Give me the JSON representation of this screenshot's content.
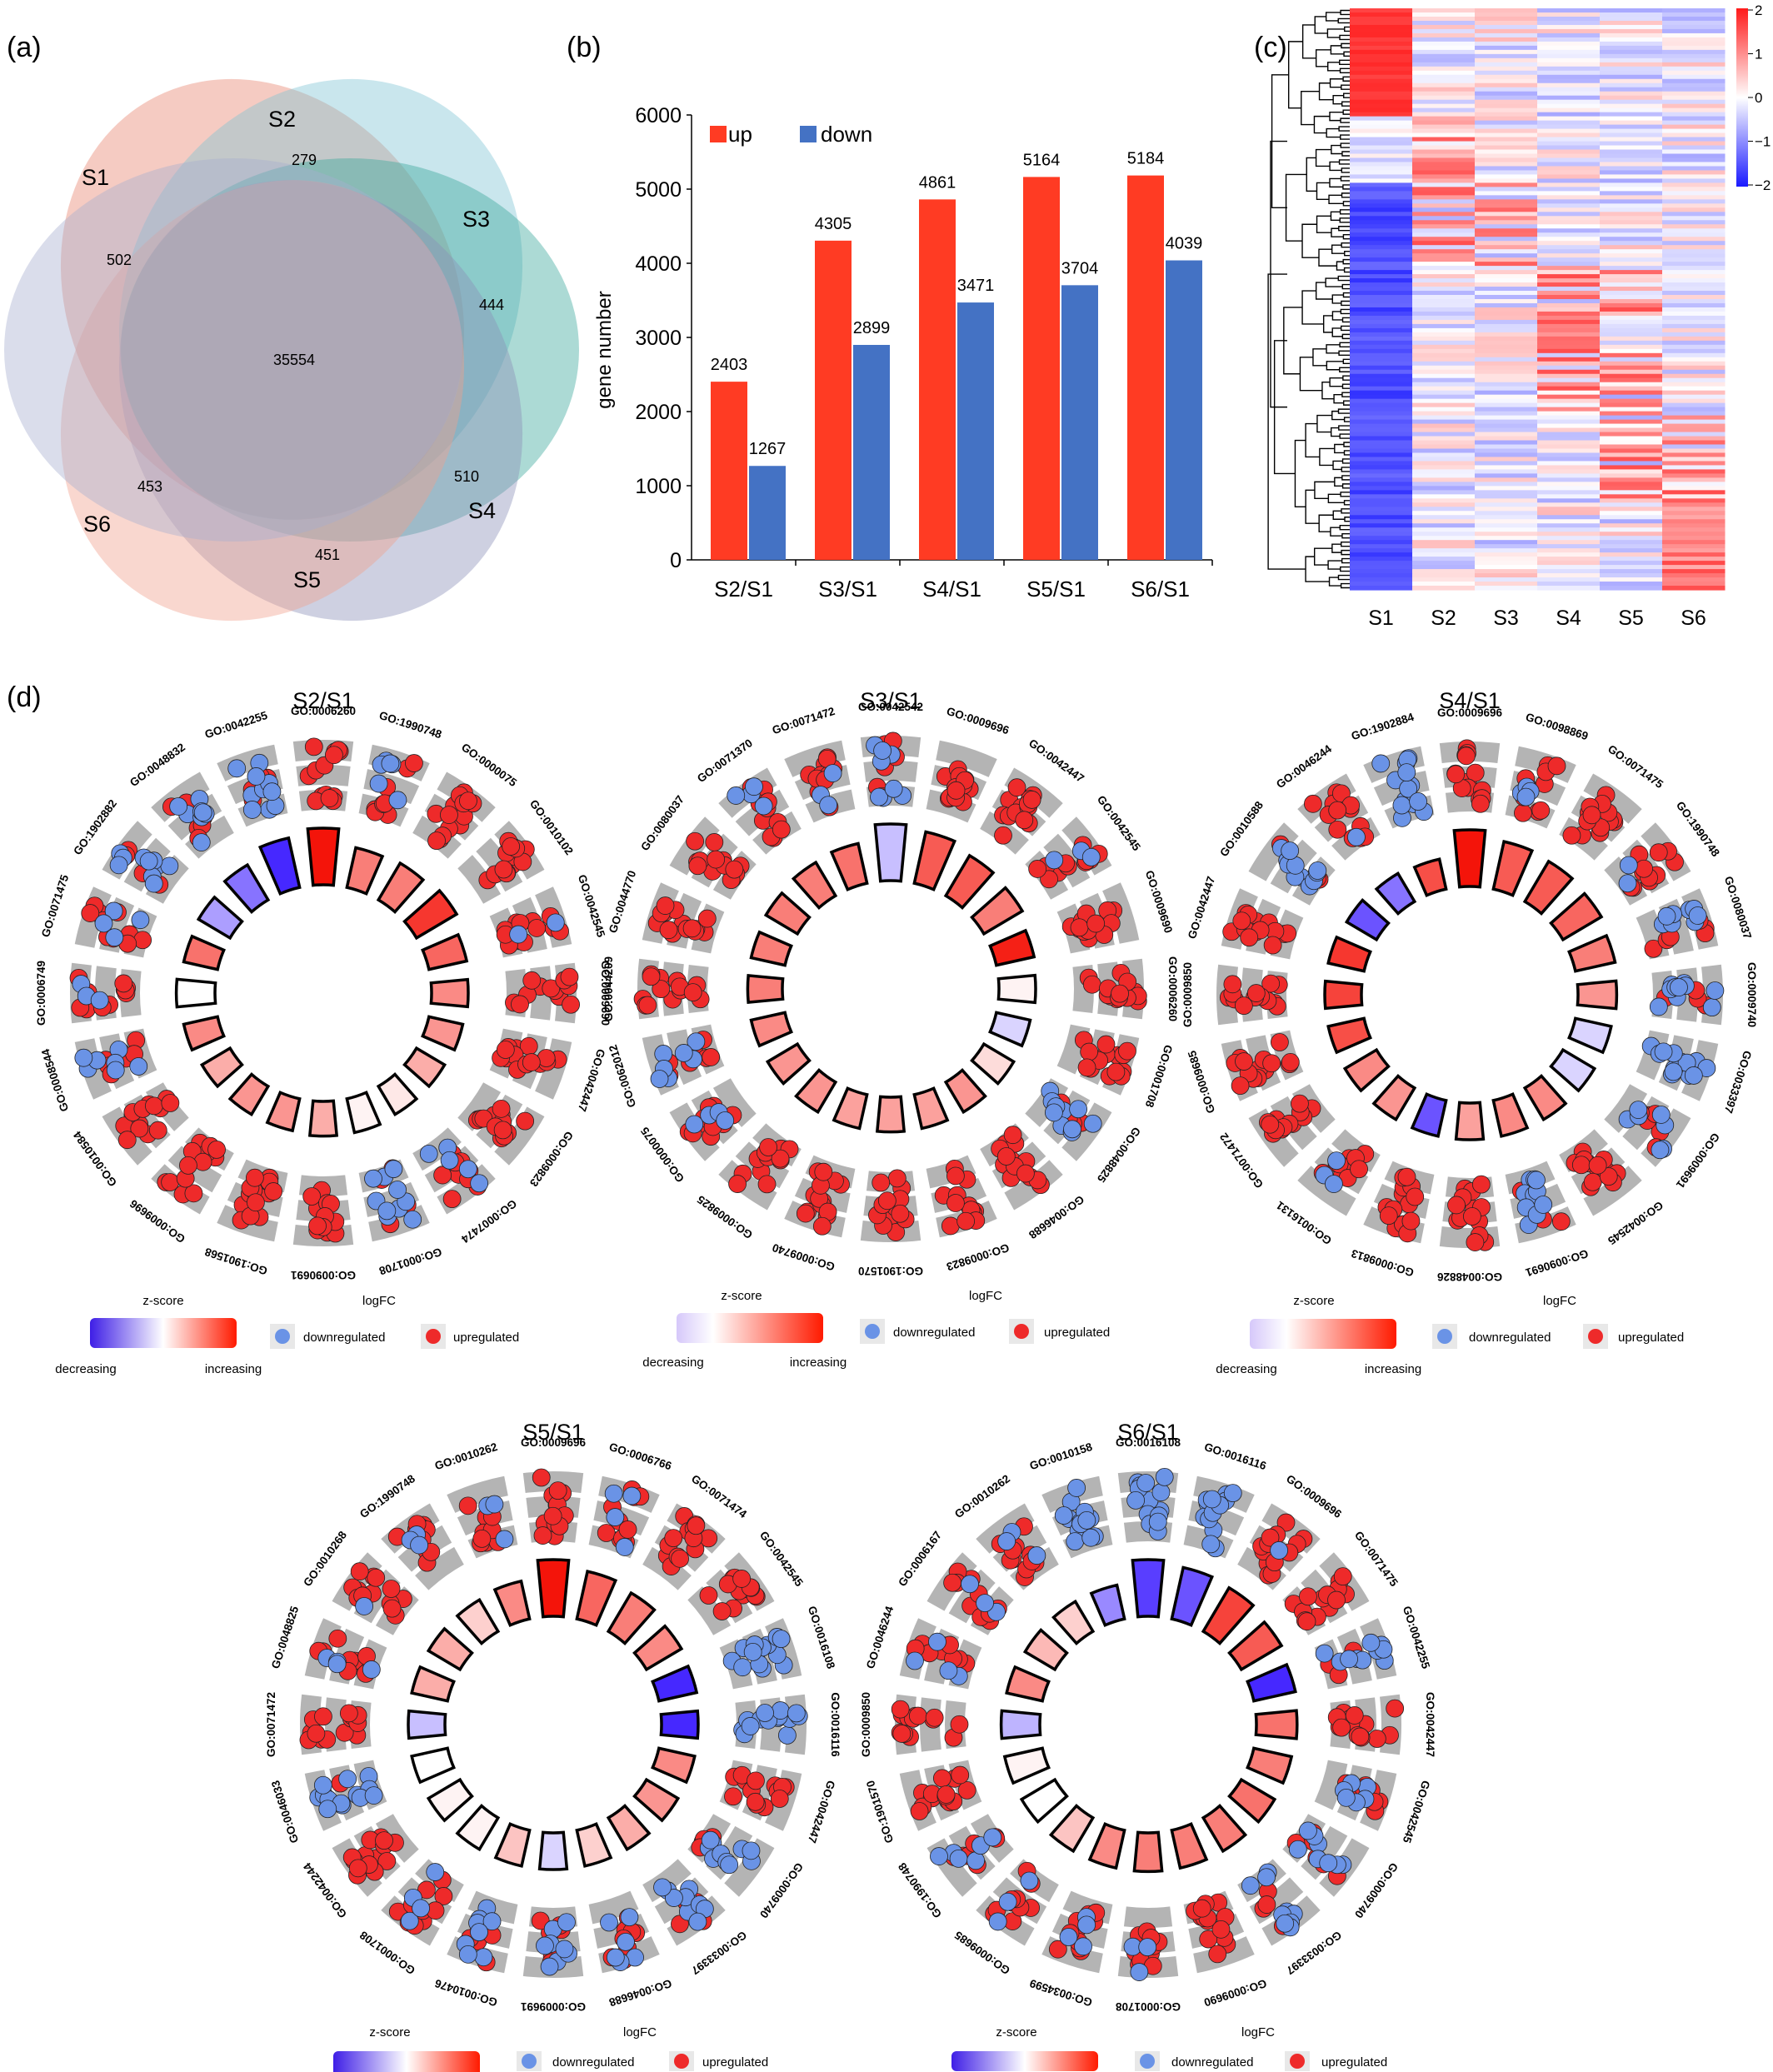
{
  "panel_labels": {
    "a": "(a)",
    "b": "(b)",
    "c": "(c)",
    "d": "(d)"
  },
  "colors": {
    "up": "#ff3b23",
    "down": "#4472c4",
    "zmin": "#3e1ee6",
    "zmid": "#ffffff",
    "zmax": "#ff1a00",
    "dot_up": "#ee2a2a",
    "dot_down": "#6a93e6",
    "track": "#b4b4b4"
  },
  "chart_data": [
    {
      "type": "venn",
      "sets": [
        "S1",
        "S2",
        "S3",
        "S4",
        "S5",
        "S6"
      ],
      "unique_counts": {
        "S1": 502,
        "S2": 279,
        "S3": 444,
        "S4": 510,
        "S5": 451,
        "S6": 453
      },
      "shared_all": 35554,
      "set_colors": {
        "S1": "#e8836e",
        "S2": "#7fc4d3",
        "S3": "#3aa89a",
        "S4": "#8b8fb8",
        "S5": "#f0a08c",
        "S6": "#a7aecf"
      }
    },
    {
      "type": "bar",
      "categories": [
        "S2/S1",
        "S3/S1",
        "S4/S1",
        "S5/S1",
        "S6/S1"
      ],
      "series": [
        {
          "name": "up",
          "values": [
            2403,
            4305,
            4861,
            5164,
            5184
          ],
          "color": "#ff3b23"
        },
        {
          "name": "down",
          "values": [
            1267,
            2899,
            3471,
            3704,
            4039
          ],
          "color": "#4472c4"
        }
      ],
      "ylabel": "gene number",
      "ylim": [
        0,
        6000
      ],
      "yticks": [
        0,
        1000,
        2000,
        3000,
        4000,
        5000,
        6000
      ],
      "legend": "top-left"
    },
    {
      "type": "heatmap",
      "columns": [
        "S1",
        "S2",
        "S3",
        "S4",
        "S5",
        "S6"
      ],
      "colorbar_ticks": [
        "2",
        "1",
        "0",
        "−1",
        "−2"
      ],
      "colorbar_range": [
        -2,
        2
      ],
      "row_dendrogram": true
    },
    {
      "type": "circular",
      "panels": [
        {
          "title": "S2/S1",
          "terms": [
            "GO:0006260",
            "GO:1990748",
            "GO:0000075",
            "GO:0010102",
            "GO:0042545",
            "GO:0009690",
            "GO:0042447",
            "GO:0009823",
            "GO:0007474",
            "GO:0001708",
            "GO:0090691",
            "GO:1901568",
            "GO:0009696",
            "GO:0010584",
            "GO:0008544",
            "GO:0006749",
            "GO:0071475",
            "GO:1902882",
            "GO:0048832",
            "GO:0042255"
          ],
          "zscore": [
            1,
            0.55,
            0.55,
            0.85,
            0.65,
            0.5,
            0.45,
            0.35,
            0.1,
            0.05,
            0.35,
            0.45,
            0.45,
            0.35,
            0.5,
            0,
            0.6,
            -0.45,
            -0.65,
            -1
          ],
          "bar_height": [
            1,
            0.6,
            0.65,
            0.75,
            0.55,
            0.5,
            0.45,
            0.4,
            0.4,
            0.45,
            0.45,
            0.4,
            0.4,
            0.4,
            0.45,
            0.55,
            0.45,
            0.5,
            0.6,
            0.85
          ],
          "up_fraction": [
            1,
            0.55,
            1,
            1,
            0.85,
            1,
            1,
            1,
            0.65,
            0.3,
            1,
            1,
            1,
            1,
            0.5,
            0.8,
            0.7,
            0.3,
            0.4,
            0.3
          ]
        },
        {
          "title": "S3/S1",
          "terms": [
            "GO:0042542",
            "GO:0009696",
            "GO:0042447",
            "GO:0042545",
            "GO:0009690",
            "GO:0006260",
            "GO:0001708",
            "GO:0048825",
            "GO:0046688",
            "GO:0009823",
            "GO:1901570",
            "GO:0009740",
            "GO:0009825",
            "GO:0000075",
            "GO:0062012",
            "GO:0044209",
            "GO:0044770",
            "GO:0080037",
            "GO:0071370",
            "GO:0071472"
          ],
          "zscore": [
            -0.3,
            0.7,
            0.7,
            0.55,
            0.95,
            0.05,
            -0.2,
            0.15,
            0.45,
            0.4,
            0.4,
            0.4,
            0.45,
            0.45,
            0.5,
            0.55,
            0.55,
            0.55,
            0.55,
            0.6
          ],
          "bar_height": [
            1,
            0.9,
            0.75,
            0.7,
            0.55,
            0.5,
            0.45,
            0.45,
            0.45,
            0.45,
            0.45,
            0.45,
            0.45,
            0.45,
            0.45,
            0.45,
            0.45,
            0.5,
            0.55,
            0.6
          ],
          "up_fraction": [
            0.4,
            1,
            1,
            0.8,
            1,
            1,
            1,
            0.3,
            1,
            1,
            1,
            1,
            1,
            0.7,
            0.5,
            1,
            1,
            1,
            0.7,
            0.75
          ]
        },
        {
          "title": "S4/S1",
          "terms": [
            "GO:0009696",
            "GO:0098869",
            "GO:0071475",
            "GO:1990748",
            "GO:0080037",
            "GO:0009740",
            "GO:0033397",
            "GO:0009691",
            "GO:0042545",
            "GO:0090691",
            "GO:0048826",
            "GO:0009813",
            "GO:0016131",
            "GO:0071472",
            "GO:0009685",
            "GO:0009850",
            "GO:0042447",
            "GO:0010588",
            "GO:0046244",
            "GO:1902884"
          ],
          "zscore": [
            1,
            0.7,
            0.7,
            0.65,
            0.55,
            0.45,
            -0.2,
            -0.2,
            0.5,
            0.5,
            0.4,
            -0.8,
            0.45,
            0.5,
            0.75,
            0.8,
            0.85,
            -0.8,
            -0.65,
            0.75
          ],
          "bar_height": [
            1,
            0.8,
            0.75,
            0.7,
            0.6,
            0.55,
            0.5,
            0.5,
            0.5,
            0.5,
            0.5,
            0.5,
            0.5,
            0.5,
            0.5,
            0.5,
            0.5,
            0.45,
            0.4,
            0.35
          ],
          "up_fraction": [
            1,
            0.7,
            1,
            0.85,
            0.4,
            0.3,
            0.1,
            0.5,
            1,
            0.2,
            1,
            1,
            0.8,
            1,
            1,
            1,
            1,
            0.2,
            0.9,
            0
          ]
        },
        {
          "title": "S5/S1",
          "terms": [
            "GO:0009696",
            "GO:0006766",
            "GO:0071474",
            "GO:0042545",
            "GO:0016108",
            "GO:0016116",
            "GO:0042447",
            "GO:0009740",
            "GO:0033397",
            "GO:0046688",
            "GO:0009691",
            "GO:0010476",
            "GO:0001708",
            "GO:0042244",
            "GO:0046033",
            "GO:0071472",
            "GO:0048825",
            "GO:0010268",
            "GO:1990748",
            "GO:0010262"
          ],
          "zscore": [
            1,
            0.65,
            0.55,
            0.5,
            -1,
            -1,
            0.5,
            0.45,
            0.35,
            0.2,
            -0.2,
            0.25,
            0.05,
            0.05,
            0,
            -0.3,
            0.35,
            0.35,
            0.2,
            0.5
          ],
          "bar_height": [
            1,
            0.8,
            0.7,
            0.6,
            0.55,
            0.5,
            0.5,
            0.5,
            0.5,
            0.5,
            0.5,
            0.5,
            0.5,
            0.5,
            0.5,
            0.5,
            0.5,
            0.5,
            0.5,
            0.55
          ],
          "up_fraction": [
            1,
            0.7,
            1,
            1,
            0,
            0,
            1,
            0.3,
            0.3,
            0.6,
            0.4,
            0.4,
            0.7,
            1,
            0.1,
            1,
            0.7,
            0.9,
            0.8,
            0.75
          ]
        },
        {
          "title": "S6/S1",
          "terms": [
            "GO:0016108",
            "GO:0016116",
            "GO:0009696",
            "GO:0071475",
            "GO:0042255",
            "GO:0042447",
            "GO:0042545",
            "GO:0009740",
            "GO:0033397",
            "GO:0009690",
            "GO:0001708",
            "GO:0034599",
            "GO:0009685",
            "GO:1990748",
            "GO:1901570",
            "GO:0009850",
            "GO:0046244",
            "GO:0006167",
            "GO:0010262",
            "GO:0010158"
          ],
          "zscore": [
            -0.9,
            -0.8,
            0.8,
            0.7,
            -1,
            0.6,
            0.55,
            0.6,
            0.55,
            0.55,
            0.55,
            0.5,
            0.25,
            0,
            0.05,
            -0.35,
            0.5,
            0.3,
            0.2,
            -0.55
          ],
          "bar_height": [
            1,
            0.9,
            0.85,
            0.75,
            0.65,
            0.6,
            0.55,
            0.55,
            0.55,
            0.55,
            0.55,
            0.55,
            0.55,
            0.55,
            0.55,
            0.55,
            0.5,
            0.45,
            0.45,
            0.45
          ],
          "up_fraction": [
            0,
            0,
            0.9,
            1,
            0.3,
            1,
            0.6,
            0.4,
            0.3,
            1,
            0.8,
            0.7,
            0.75,
            0.6,
            1,
            1,
            0.7,
            0.8,
            0.75,
            0
          ]
        }
      ],
      "legend": {
        "zscore_title": "z-score",
        "logfc_title": "logFC",
        "decreasing": "decreasing",
        "increasing": "increasing",
        "down": "downregulated",
        "up": "upregulated"
      }
    }
  ]
}
